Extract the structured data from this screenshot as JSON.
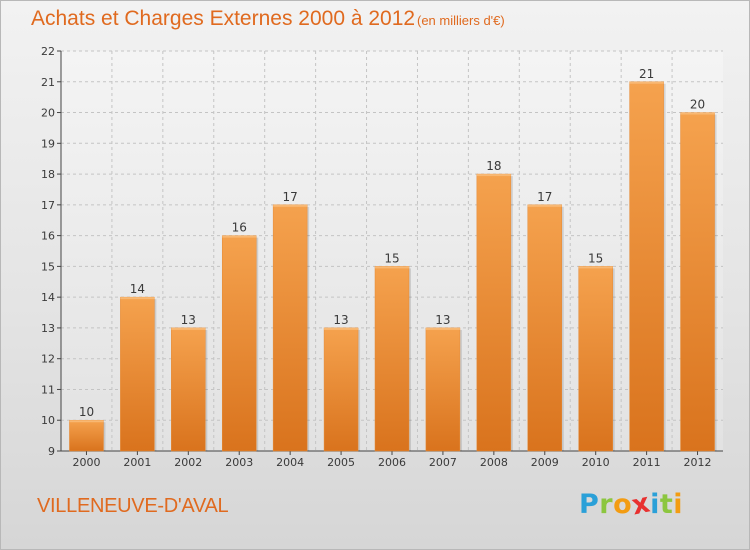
{
  "header": {
    "title": "Achats et Charges Externes 2000 à 2012",
    "subtitle": "(en milliers d'€)"
  },
  "footer": {
    "commune": "VILLENEUVE-D'AVAL",
    "logo_letters": [
      {
        "char": "P",
        "color": "#2aa0d8"
      },
      {
        "char": "r",
        "color": "#8cc63f"
      },
      {
        "char": "o",
        "color": "#f39c12"
      },
      {
        "char": "x",
        "color": "#e8302f"
      },
      {
        "char": "i",
        "color": "#2aa0d8"
      },
      {
        "char": "t",
        "color": "#8cc63f"
      },
      {
        "char": "i",
        "color": "#f39c12"
      }
    ]
  },
  "chart_data": {
    "type": "bar",
    "categories": [
      "2000",
      "2001",
      "2002",
      "2003",
      "2004",
      "2005",
      "2006",
      "2007",
      "2008",
      "2009",
      "2010",
      "2011",
      "2012"
    ],
    "values": [
      10,
      14,
      13,
      16,
      17,
      13,
      15,
      13,
      18,
      17,
      15,
      21,
      20
    ],
    "data_labels": [
      "10",
      "14",
      "13",
      "16",
      "17",
      "13",
      "15",
      "13",
      "18",
      "17",
      "15",
      "21",
      "20"
    ],
    "ylim": [
      9,
      22
    ],
    "yticks": [
      9,
      10,
      11,
      12,
      13,
      14,
      15,
      16,
      17,
      18,
      19,
      20,
      21,
      22
    ],
    "ytick_labels": [
      "9",
      "10",
      "11",
      "12",
      "13",
      "14",
      "15",
      "16",
      "17",
      "18",
      "19",
      "20",
      "21",
      "22"
    ],
    "grid": true,
    "bar_color_top": "#f5a24e",
    "bar_color_bottom": "#d9731d"
  }
}
